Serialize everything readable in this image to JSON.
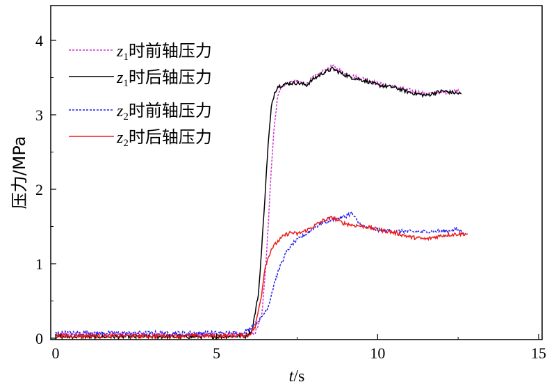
{
  "chart_data": {
    "type": "line",
    "ylabel": "压力/MPa",
    "xlabel_italic": "t",
    "xlabel_unit": "/s",
    "xlim": [
      0,
      15
    ],
    "ylim": [
      0,
      4.5
    ],
    "x_ticks": [
      0,
      5,
      10,
      15
    ],
    "y_ticks": [
      0,
      1,
      2,
      3,
      4
    ],
    "x_tick_labels": [
      "0",
      "5",
      "10",
      "15"
    ],
    "y_tick_labels": [
      "0",
      "1",
      "2",
      "3",
      "4"
    ],
    "grid": false,
    "legend_position": "top-left",
    "series": [
      {
        "name": "z1时前轴压力",
        "legend_var": "z",
        "legend_sub": "1",
        "legend_rest": "时前轴压力",
        "color": "#cc33cc",
        "dash": "3,2",
        "points": [
          [
            0,
            0.05
          ],
          [
            1,
            0.06
          ],
          [
            2,
            0.05
          ],
          [
            3,
            0.05
          ],
          [
            4,
            0.05
          ],
          [
            5,
            0.05
          ],
          [
            6,
            0.05
          ],
          [
            6.2,
            0.07
          ],
          [
            6.4,
            0.3
          ],
          [
            6.5,
            0.8
          ],
          [
            6.6,
            1.5
          ],
          [
            6.7,
            2.3
          ],
          [
            6.8,
            2.9
          ],
          [
            6.9,
            3.25
          ],
          [
            7.0,
            3.37
          ],
          [
            7.2,
            3.42
          ],
          [
            7.5,
            3.45
          ],
          [
            7.8,
            3.42
          ],
          [
            8.0,
            3.5
          ],
          [
            8.3,
            3.58
          ],
          [
            8.6,
            3.65
          ],
          [
            8.9,
            3.58
          ],
          [
            9.2,
            3.52
          ],
          [
            9.6,
            3.48
          ],
          [
            10.0,
            3.42
          ],
          [
            10.5,
            3.38
          ],
          [
            11.0,
            3.33
          ],
          [
            11.5,
            3.28
          ],
          [
            12.0,
            3.3
          ],
          [
            12.5,
            3.33
          ],
          [
            12.6,
            3.3
          ]
        ]
      },
      {
        "name": "z1时后轴压力",
        "legend_var": "z",
        "legend_sub": "1",
        "legend_rest": "时后轴压力",
        "color": "#000000",
        "dash": "",
        "points": [
          [
            0,
            0.02
          ],
          [
            1,
            0.02
          ],
          [
            2,
            0.02
          ],
          [
            3,
            0.02
          ],
          [
            4,
            0.02
          ],
          [
            5,
            0.02
          ],
          [
            5.9,
            0.03
          ],
          [
            6.1,
            0.1
          ],
          [
            6.3,
            0.6
          ],
          [
            6.4,
            1.2
          ],
          [
            6.5,
            1.9
          ],
          [
            6.6,
            2.6
          ],
          [
            6.7,
            3.1
          ],
          [
            6.8,
            3.3
          ],
          [
            6.9,
            3.38
          ],
          [
            7.2,
            3.42
          ],
          [
            7.5,
            3.43
          ],
          [
            7.8,
            3.4
          ],
          [
            8.0,
            3.48
          ],
          [
            8.3,
            3.56
          ],
          [
            8.6,
            3.62
          ],
          [
            8.9,
            3.55
          ],
          [
            9.2,
            3.5
          ],
          [
            9.6,
            3.46
          ],
          [
            10.0,
            3.4
          ],
          [
            10.5,
            3.37
          ],
          [
            11.0,
            3.3
          ],
          [
            11.5,
            3.26
          ],
          [
            12.0,
            3.32
          ],
          [
            12.3,
            3.3
          ],
          [
            12.6,
            3.28
          ]
        ]
      },
      {
        "name": "z2时前轴压力",
        "legend_var": "z",
        "legend_sub": "2",
        "legend_rest": "时前轴压力",
        "color": "#1a1aee",
        "dash": "3,2",
        "points": [
          [
            0,
            0.07
          ],
          [
            1,
            0.07
          ],
          [
            2,
            0.07
          ],
          [
            3,
            0.07
          ],
          [
            4,
            0.07
          ],
          [
            5,
            0.07
          ],
          [
            5.8,
            0.07
          ],
          [
            6.0,
            0.12
          ],
          [
            6.2,
            0.2
          ],
          [
            6.4,
            0.28
          ],
          [
            6.6,
            0.42
          ],
          [
            6.8,
            0.75
          ],
          [
            7.0,
            1.0
          ],
          [
            7.2,
            1.18
          ],
          [
            7.4,
            1.28
          ],
          [
            7.6,
            1.35
          ],
          [
            7.8,
            1.4
          ],
          [
            8.0,
            1.48
          ],
          [
            8.3,
            1.55
          ],
          [
            8.6,
            1.6
          ],
          [
            8.9,
            1.62
          ],
          [
            9.2,
            1.68
          ],
          [
            9.4,
            1.55
          ],
          [
            9.6,
            1.5
          ],
          [
            10.0,
            1.45
          ],
          [
            10.5,
            1.44
          ],
          [
            11.0,
            1.43
          ],
          [
            11.5,
            1.43
          ],
          [
            12.0,
            1.44
          ],
          [
            12.5,
            1.46
          ],
          [
            12.7,
            1.42
          ]
        ]
      },
      {
        "name": "z2时后轴压力",
        "legend_var": "z",
        "legend_sub": "2",
        "legend_rest": "时后轴压力",
        "color": "#ee1a1a",
        "dash": "",
        "points": [
          [
            0,
            0.03
          ],
          [
            1,
            0.03
          ],
          [
            2,
            0.03
          ],
          [
            3,
            0.03
          ],
          [
            4,
            0.03
          ],
          [
            5,
            0.03
          ],
          [
            6.0,
            0.04
          ],
          [
            6.2,
            0.15
          ],
          [
            6.4,
            0.6
          ],
          [
            6.5,
            0.95
          ],
          [
            6.7,
            1.2
          ],
          [
            6.9,
            1.3
          ],
          [
            7.1,
            1.38
          ],
          [
            7.3,
            1.42
          ],
          [
            7.5,
            1.4
          ],
          [
            7.8,
            1.45
          ],
          [
            8.0,
            1.5
          ],
          [
            8.3,
            1.58
          ],
          [
            8.6,
            1.62
          ],
          [
            8.9,
            1.55
          ],
          [
            9.2,
            1.52
          ],
          [
            9.6,
            1.5
          ],
          [
            10.0,
            1.46
          ],
          [
            10.5,
            1.42
          ],
          [
            11.0,
            1.36
          ],
          [
            11.5,
            1.33
          ],
          [
            12.0,
            1.38
          ],
          [
            12.5,
            1.4
          ],
          [
            12.8,
            1.4
          ]
        ]
      }
    ]
  }
}
